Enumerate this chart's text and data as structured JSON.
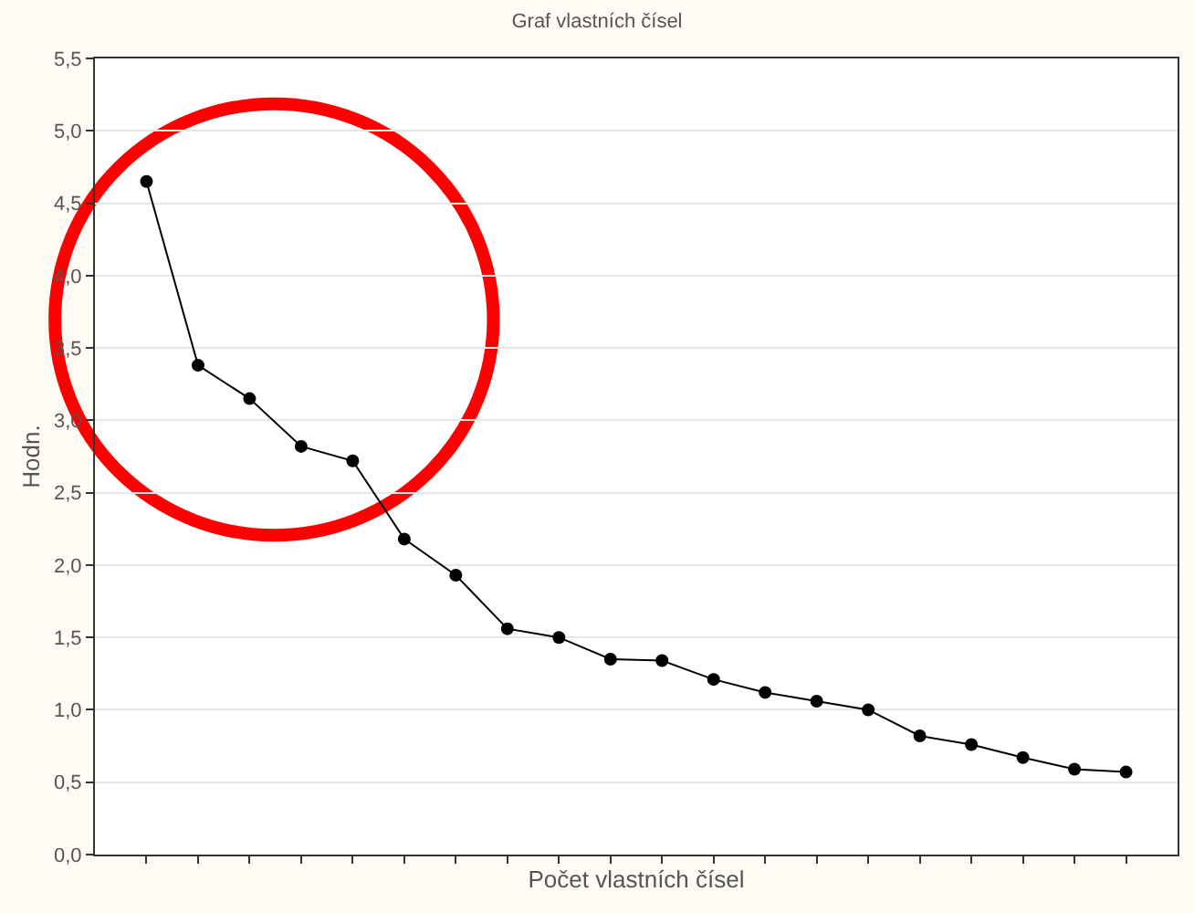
{
  "chart_data": {
    "type": "line",
    "title": "Graf vlastních čísel",
    "xlabel": "Počet vlastních čísel",
    "ylabel": "Hodn.",
    "categories": [
      null,
      null,
      null,
      null,
      null,
      null,
      null,
      null,
      null,
      null,
      null,
      null,
      null,
      null,
      null,
      null,
      null,
      null,
      null,
      null
    ],
    "series": [
      {
        "color": "#000000",
        "values": [
          4.65,
          3.38,
          3.15,
          2.82,
          2.72,
          2.18,
          1.93,
          1.56,
          1.5,
          1.35,
          1.34,
          1.21,
          1.12,
          1.06,
          1.0,
          0.82,
          0.76,
          0.67,
          0.59,
          0.57
        ]
      }
    ],
    "ylim": [
      0,
      5.5
    ],
    "yticks": [
      {
        "value": 0,
        "label": "0,0"
      },
      {
        "value": 0.5,
        "label": "0,5"
      },
      {
        "value": 1,
        "label": "1,0"
      },
      {
        "value": 1.5,
        "label": "1,5"
      },
      {
        "value": 2,
        "label": "2,0"
      },
      {
        "value": 2.5,
        "label": "2,5"
      },
      {
        "value": 3,
        "label": "3,0"
      },
      {
        "value": 3.5,
        "label": "3,5"
      },
      {
        "value": 4,
        "label": "4,0"
      },
      {
        "value": 4.5,
        "label": "4,5"
      },
      {
        "value": 5,
        "label": "5,0"
      },
      {
        "value": 5.5,
        "label": "5,5"
      }
    ],
    "grid": "y",
    "marker": "circle",
    "line_style": "solid"
  }
}
